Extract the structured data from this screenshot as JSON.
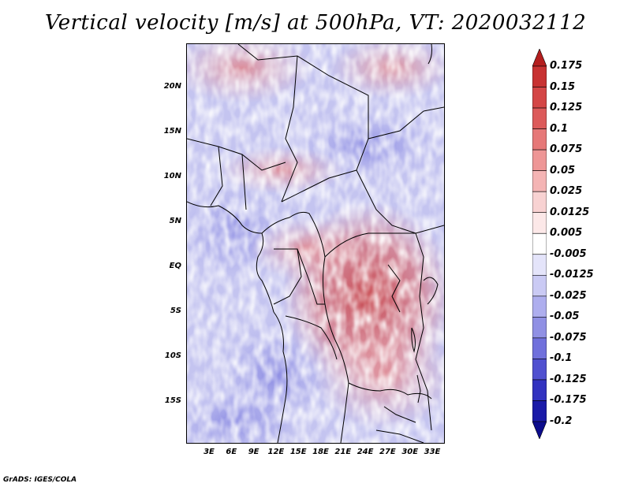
{
  "title": "Vertical velocity [m/s] at 500hPa, VT: 2020032112",
  "credit": "GrADS: IGES/COLA",
  "lat_labels": [
    "20N",
    "15N",
    "10N",
    "5N",
    "EQ",
    "5S",
    "10S",
    "15S"
  ],
  "lon_labels": [
    "3E",
    "6E",
    "9E",
    "12E",
    "15E",
    "18E",
    "21E",
    "24E",
    "27E",
    "30E",
    "33E"
  ],
  "colorbar": {
    "labels": [
      "0.175",
      "0.15",
      "0.125",
      "0.1",
      "0.075",
      "0.05",
      "0.025",
      "0.0125",
      "0.005",
      "-0.005",
      "-0.0125",
      "-0.025",
      "-0.05",
      "-0.075",
      "-0.1",
      "-0.125",
      "-0.175",
      "-0.2"
    ],
    "colors": [
      "#b41e1e",
      "#c83232",
      "#d44646",
      "#dc5a5a",
      "#e67878",
      "#ee9696",
      "#f4b4b4",
      "#f8d2d2",
      "#fce8e8",
      "#ffffff",
      "#e4e4fa",
      "#cacaf4",
      "#aeaeee",
      "#9090e4",
      "#7070dc",
      "#5050d0",
      "#3232c0",
      "#1a1aa8",
      "#0c0c8c"
    ]
  }
}
